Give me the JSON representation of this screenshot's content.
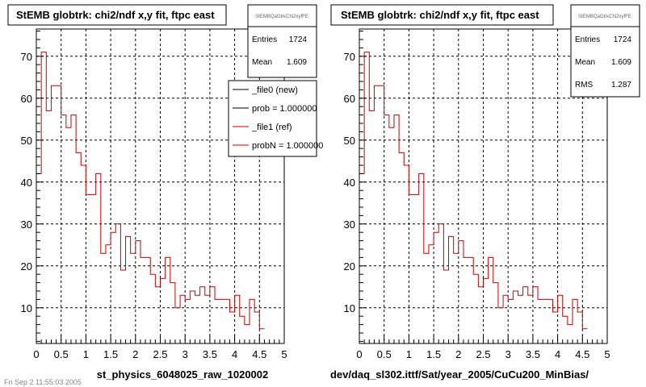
{
  "chart_data": [
    {
      "type": "histogram",
      "title": "StEMB globtrk: chi2/ndf x,y fit, ftpc east",
      "xlabel": "st_physics_6048025_raw_1020002",
      "xlim": [
        0,
        5
      ],
      "ylim": [
        1.5,
        76.5
      ],
      "x_ticks": [
        "0",
        "0.5",
        "1",
        "1.5",
        "2",
        "2.5",
        "3",
        "3.5",
        "4",
        "4.5",
        "5"
      ],
      "y_ticks": [
        "10",
        "20",
        "30",
        "40",
        "50",
        "60",
        "70"
      ],
      "grid": true,
      "bin_edges_start": 0,
      "bin_width": 0.1,
      "values": [
        42,
        71,
        57,
        63,
        63,
        56,
        53,
        56,
        47,
        44,
        37,
        37,
        42,
        23,
        25,
        28,
        30,
        19,
        27,
        23,
        26,
        22,
        22,
        18,
        15,
        17,
        22,
        16,
        10,
        13,
        12,
        14,
        13,
        15,
        13,
        15,
        12,
        12,
        12,
        9,
        13,
        8,
        6,
        12,
        9,
        5
      ],
      "series": [
        {
          "name": "_file0 (new)",
          "color": "#000000"
        },
        {
          "name": "_file1 (ref)",
          "color": "#cc0000"
        }
      ],
      "stats": {
        "header": "StEMBQaGtrkChi2xyfFE",
        "entries_label": "Entries",
        "entries": "1724",
        "mean_label": "Mean",
        "mean": "1.609"
      },
      "legend": {
        "placement": "top-right",
        "entries": [
          "_file0 (new)",
          "prob = 1.000000",
          "_file1 (ref)",
          "probN = 1.000000"
        ]
      }
    },
    {
      "type": "histogram",
      "title": "StEMB globtrk: chi2/ndf x,y fit, ftpc east",
      "xlabel": "dev/daq_sl302.ittf/Sat/year_2005/CuCu200_MinBias/",
      "xlim": [
        0,
        5
      ],
      "ylim": [
        1.5,
        76.5
      ],
      "x_ticks": [
        "0",
        "0.5",
        "1",
        "1.5",
        "2",
        "2.5",
        "3",
        "3.5",
        "4",
        "4.5",
        "5"
      ],
      "y_ticks": [
        "10",
        "20",
        "30",
        "40",
        "50",
        "60",
        "70"
      ],
      "grid": true,
      "bin_edges_start": 0,
      "bin_width": 0.1,
      "values": [
        42,
        71,
        57,
        63,
        63,
        56,
        53,
        56,
        47,
        44,
        37,
        37,
        42,
        23,
        25,
        28,
        30,
        19,
        27,
        23,
        26,
        22,
        22,
        18,
        15,
        17,
        22,
        16,
        10,
        13,
        12,
        14,
        13,
        15,
        13,
        15,
        12,
        12,
        12,
        9,
        13,
        8,
        6,
        12,
        9,
        5
      ],
      "series": [
        {
          "name": "",
          "color": "#cc0000"
        }
      ],
      "stats": {
        "header": "StEMBQaGtrkChi2xyfFE",
        "entries_label": "Entries",
        "entries": "1724",
        "mean_label": "Mean",
        "mean": "1.609",
        "rms_label": "RMS",
        "rms": "1.287"
      }
    }
  ],
  "footer": "Fri Sep 2 11:55:03 2005"
}
